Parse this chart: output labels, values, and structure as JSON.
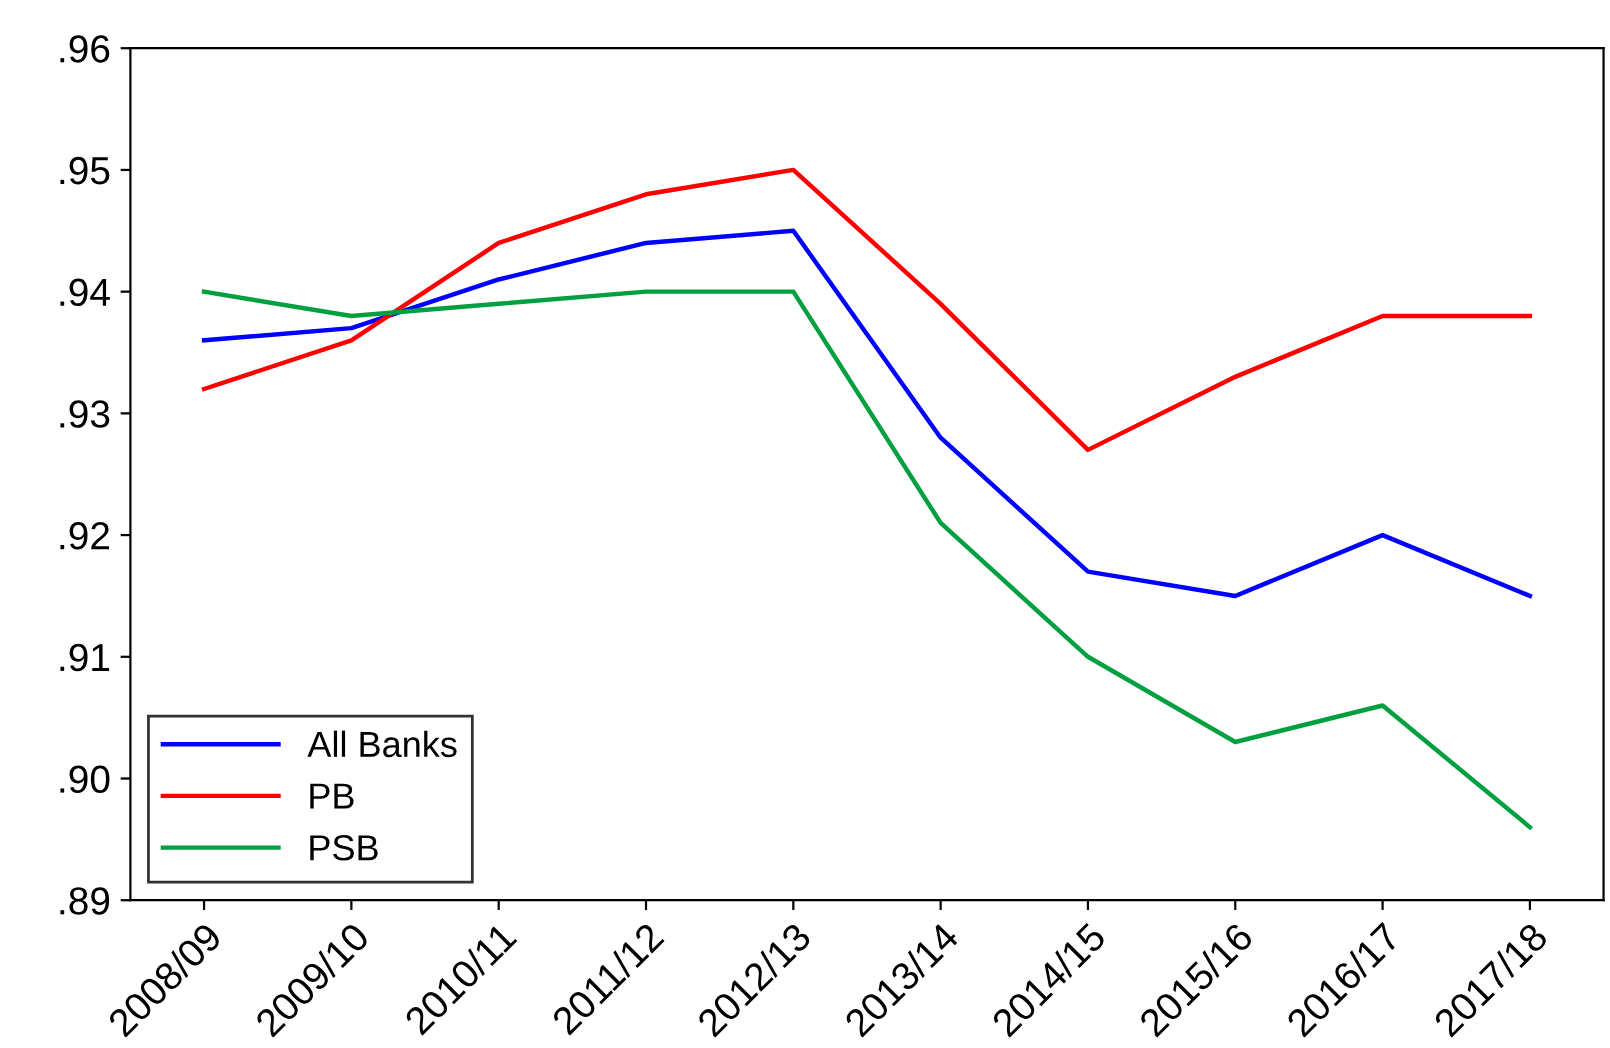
{
  "chart_data": {
    "type": "line",
    "categories": [
      "2008/09",
      "2009/10",
      "2010/11",
      "2011/12",
      "2012/13",
      "2013/14",
      "2014/15",
      "2015/16",
      "2016/17",
      "2017/18"
    ],
    "series": [
      {
        "name": "All Banks",
        "color": "#0000ff",
        "values": [
          0.936,
          0.937,
          0.941,
          0.944,
          0.945,
          0.928,
          0.917,
          0.915,
          0.92,
          0.915
        ]
      },
      {
        "name": "PB",
        "color": "#ff0000",
        "values": [
          0.932,
          0.936,
          0.944,
          0.948,
          0.95,
          0.939,
          0.927,
          0.933,
          0.938,
          0.938
        ]
      },
      {
        "name": "PSB",
        "color": "#00a040",
        "values": [
          0.94,
          0.938,
          0.939,
          0.94,
          0.94,
          0.921,
          0.91,
          0.903,
          0.906,
          0.896
        ]
      }
    ],
    "ylim": [
      0.89,
      0.96
    ],
    "yticks": [
      {
        "value": 0.89,
        "label": ".89"
      },
      {
        "value": 0.9,
        "label": ".90"
      },
      {
        "value": 0.91,
        "label": ".91"
      },
      {
        "value": 0.92,
        "label": ".92"
      },
      {
        "value": 0.93,
        "label": ".93"
      },
      {
        "value": 0.94,
        "label": ".94"
      },
      {
        "value": 0.95,
        "label": ".95"
      },
      {
        "value": 0.96,
        "label": ".96"
      }
    ],
    "grid": false,
    "legend": "bottom left",
    "marker": "none",
    "line_style": "solid"
  }
}
